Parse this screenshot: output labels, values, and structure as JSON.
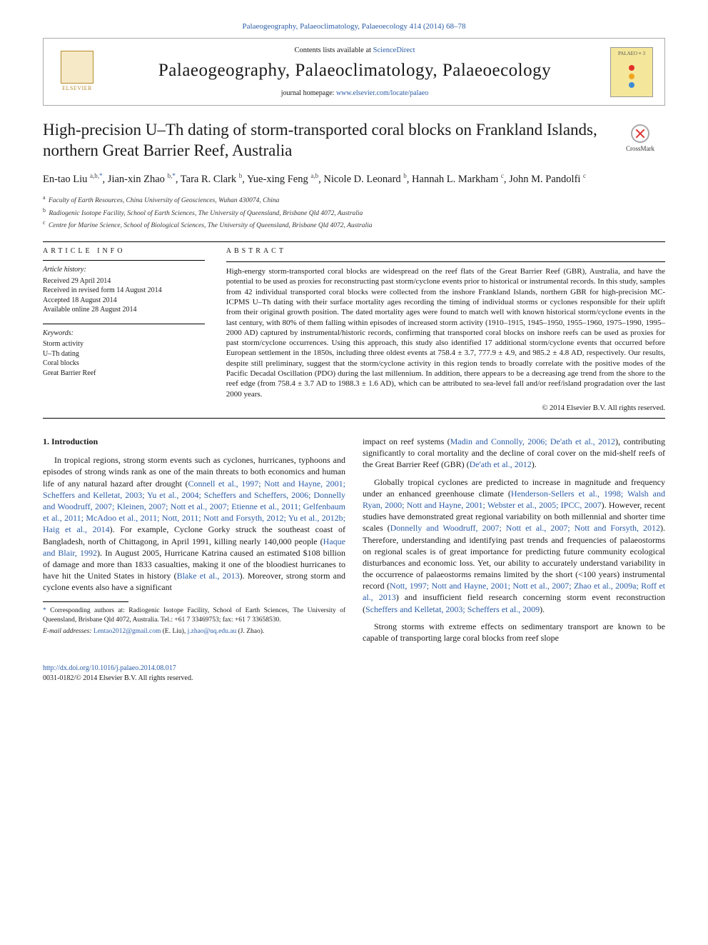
{
  "topbar": "Palaeogeography, Palaeoclimatology, Palaeoecology 414 (2014) 68–78",
  "header": {
    "contents_prefix": "Contents lists available at ",
    "contents_link": "ScienceDirect",
    "journal": "Palaeogeography, Palaeoclimatology, Palaeoecology",
    "homepage_prefix": "journal homepage: ",
    "homepage_url": "www.elsevier.com/locate/palaeo",
    "elsevier_label": "ELSEVIER",
    "cover_label": "PALAEO ≡ 3",
    "dot_colors": [
      "#e3302a",
      "#f1a51f",
      "#3e8bd6"
    ]
  },
  "title": "High-precision U–Th dating of storm-transported coral blocks on Frankland Islands, northern Great Barrier Reef, Australia",
  "crossmark": "CrossMark",
  "authors_html": "En-tao Liu <sup>a,b,</sup><sup class=\"star\">*</sup>, Jian-xin Zhao <sup>b,</sup><sup class=\"star\">*</sup>, Tara R. Clark <sup>b</sup>, Yue-xing Feng <sup>a,b</sup>, Nicole D. Leonard <sup>b</sup>, Hannah L. Markham <sup>c</sup>, John M. Pandolfi <sup>c</sup>",
  "affils": [
    {
      "sup": "a",
      "text": "Faculty of Earth Resources, China University of Geosciences, Wuhan 430074, China"
    },
    {
      "sup": "b",
      "text": "Radiogenic Isotope Facility, School of Earth Sciences, The University of Queensland, Brisbane Qld 4072, Australia"
    },
    {
      "sup": "c",
      "text": "Centre for Marine Science, School of Biological Sciences, The University of Queensland, Brisbane Qld 4072, Australia"
    }
  ],
  "info": {
    "label": "article info",
    "history_lbl": "Article history:",
    "history": [
      "Received 29 April 2014",
      "Received in revised form 14 August 2014",
      "Accepted 18 August 2014",
      "Available online 28 August 2014"
    ],
    "kw_lbl": "Keywords:",
    "keywords": [
      "Storm activity",
      "U–Th dating",
      "Coral blocks",
      "Great Barrier Reef"
    ]
  },
  "abstract": {
    "label": "abstract",
    "text": "High-energy storm-transported coral blocks are widespread on the reef flats of the Great Barrier Reef (GBR), Australia, and have the potential to be used as proxies for reconstructing past storm/cyclone events prior to historical or instrumental records. In this study, samples from 42 individual transported coral blocks were collected from the inshore Frankland Islands, northern GBR for high-precision MC-ICPMS U–Th dating with their surface mortality ages recording the timing of individual storms or cyclones responsible for their uplift from their original growth position. The dated mortality ages were found to match well with known historical storm/cyclone events in the last century, with 80% of them falling within episodes of increased storm activity (1910–1915, 1945–1950, 1955–1960, 1975–1990, 1995–2000 AD) captured by instrumental/historic records, confirming that transported coral blocks on inshore reefs can be used as proxies for past storm/cyclone occurrences. Using this approach, this study also identified 17 additional storm/cyclone events that occurred before European settlement in the 1850s, including three oldest events at 758.4 ± 3.7, 777.9 ± 4.9, and 985.2 ± 4.8 AD, respectively. Our results, despite still preliminary, suggest that the storm/cyclone activity in this region tends to broadly correlate with the positive modes of the Pacific Decadal Oscillation (PDO) during the last millennium. In addition, there appears to be a decreasing age trend from the shore to the reef edge (from 758.4 ± 3.7 AD to 1988.3 ± 1.6 AD), which can be attributed to sea-level fall and/or reef/island progradation over the last 2000 years.",
    "copyright": "© 2014 Elsevier B.V. All rights reserved."
  },
  "intro": {
    "heading": "1. Introduction",
    "p1_pre": "In tropical regions, strong storm events such as cyclones, hurricanes, typhoons and episodes of strong winds rank as one of the main threats to both economics and human life of any natural hazard after drought (",
    "p1_refs": "Connell et al., 1997; Nott and Hayne, 2001; Scheffers and Kelletat, 2003; Yu et al., 2004; Scheffers and Scheffers, 2006; Donnelly and Woodruff, 2007; Kleinen, 2007; Nott et al., 2007; Etienne et al., 2011; Gelfenbaum et al., 2011; McAdoo et al., 2011; Nott, 2011; Nott and Forsyth, 2012; Yu et al., 2012b; Haig et al., 2014",
    "p1_mid1": "). For example, Cyclone Gorky struck the southeast coast of Bangladesh, north of Chittagong, in April 1991, killing nearly 140,000 people (",
    "p1_ref2": "Haque and Blair, 1992",
    "p1_mid2": "). In August 2005, Hurricane Katrina caused an estimated $108 billion of damage and more than 1833 casualties, making it one of the bloodiest hurricanes to have hit the United States in history (",
    "p1_ref3": "Blake et al., 2013",
    "p1_end": "). Moreover, strong storm and cyclone events also have a significant",
    "p2_pre": "impact on reef systems (",
    "p2_ref1": "Madin and Connolly, 2006; De'ath et al., 2012",
    "p2_mid": "), contributing significantly to coral mortality and the decline of coral cover on the mid-shelf reefs of the Great Barrier Reef (GBR) (",
    "p2_ref2": "De'ath et al., 2012",
    "p2_end": ").",
    "p3_pre": "Globally tropical cyclones are predicted to increase in magnitude and frequency under an enhanced greenhouse climate (",
    "p3_ref1": "Henderson-Sellers et al., 1998; Walsh and Ryan, 2000; Nott and Hayne, 2001; Webster et al., 2005; IPCC, 2007",
    "p3_mid1": "). However, recent studies have demonstrated great regional variability on both millennial and shorter time scales (",
    "p3_ref2": "Donnelly and Woodruff, 2007; Nott et al., 2007; Nott and Forsyth, 2012",
    "p3_mid2": "). Therefore, understanding and identifying past trends and frequencies of palaeostorms on regional scales is of great importance for predicting future community ecological disturbances and economic loss. Yet, our ability to accurately understand variability in the occurrence of palaeostorms remains limited by the short (<100 years) instrumental record (",
    "p3_ref3": "Nott, 1997; Nott and Hayne, 2001; Nott et al., 2007; Zhao et al., 2009a; Roff et al., 2013",
    "p3_mid3": ") and insufficient field research concerning storm event reconstruction (",
    "p3_ref4": "Scheffers and Kelletat, 2003; Scheffers et al., 2009",
    "p3_end": ").",
    "p4": "Strong storms with extreme effects on sedimentary transport are known to be capable of transporting large coral blocks from reef slope"
  },
  "footnote": {
    "corr": "Corresponding authors at: Radiogenic Isotope Facility, School of Earth Sciences, The University of Queensland, Brisbane Qld 4072, Australia. Tel.: +61 7 33469753; fax: +61 7 33658530.",
    "email_lbl": "E-mail addresses:",
    "email1": "Lentao2012@gmail.com",
    "email1_who": " (E. Liu), ",
    "email2": "j.zhao@uq.edu.au",
    "email2_who": " (J. Zhao)."
  },
  "footer": {
    "doi": "http://dx.doi.org/10.1016/j.palaeo.2014.08.017",
    "rights": "0031-0182/© 2014 Elsevier B.V. All rights reserved."
  }
}
